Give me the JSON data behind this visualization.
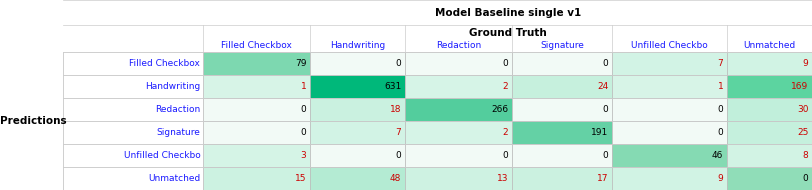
{
  "title1": "Model Baseline single v1",
  "title2": "Ground Truth",
  "row_label_header": "Predictions",
  "col_labels": [
    "Filled Checkbox",
    "Handwriting",
    "Redaction",
    "Signature",
    "Unfilled Checkbo",
    "Unmatched"
  ],
  "row_labels": [
    "Filled Checkbox",
    "Handwriting",
    "Redaction",
    "Signature",
    "Unfilled Checkbo",
    "Unmatched"
  ],
  "matrix": [
    [
      79,
      0,
      0,
      0,
      7,
      9
    ],
    [
      1,
      631,
      2,
      24,
      1,
      169
    ],
    [
      0,
      18,
      266,
      0,
      0,
      30
    ],
    [
      0,
      7,
      2,
      191,
      0,
      25
    ],
    [
      3,
      0,
      0,
      0,
      46,
      8
    ],
    [
      15,
      48,
      13,
      17,
      9,
      0
    ]
  ],
  "off_diagonal_zero_color": "#f2faf6",
  "background_color": "#ffffff",
  "grid_color": "#cccccc",
  "text_color_offdiag_nonzero": "#cc0000",
  "col_label_color": "#1a1aff",
  "row_label_color": "#1a1aff",
  "predictions_label_color": "#000000",
  "diag_text_color": "#000000",
  "cell_text_color_zero": "#000000",
  "title_fontsize": 7.5,
  "label_fontsize": 6.5,
  "cell_fontsize": 6.5,
  "pred_fontsize": 7.5
}
